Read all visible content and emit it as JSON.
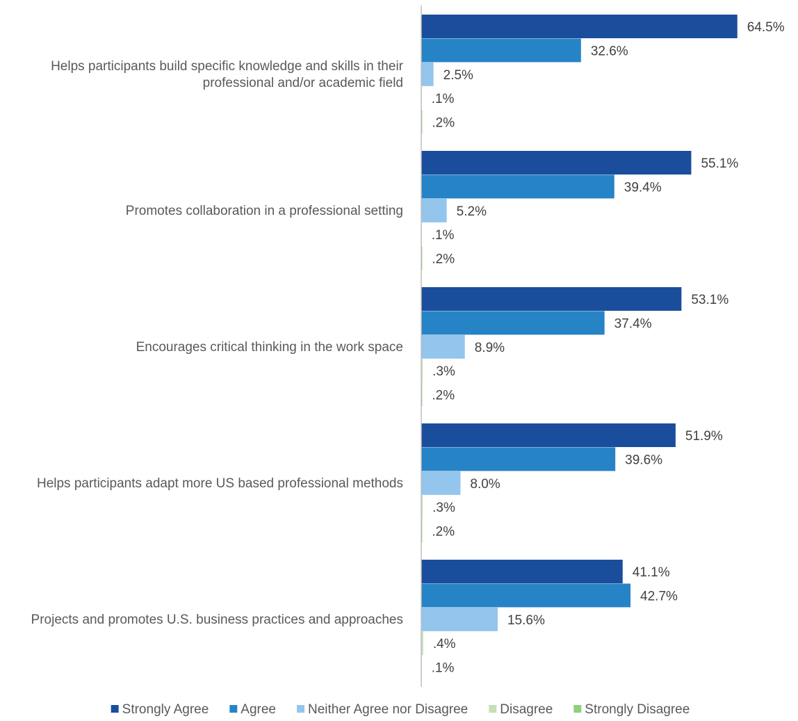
{
  "chart_data": {
    "type": "bar",
    "orientation": "horizontal",
    "categories": [
      "Helps participants build specific knowledge and skills in their professional and/or academic field",
      "Promotes collaboration in a professional setting",
      "Encourages critical thinking in the work space",
      "Helps participants adapt more US based professional methods",
      "Projects and promotes U.S. business practices and approaches"
    ],
    "series": [
      {
        "name": "Strongly Agree",
        "color": "#1a4e9c",
        "values": [
          64.5,
          55.1,
          53.1,
          51.9,
          41.1
        ],
        "labels": [
          "64.5%",
          "55.1%",
          "53.1%",
          "51.9%",
          "41.1%"
        ]
      },
      {
        "name": "Agree",
        "color": "#2683c6",
        "values": [
          32.6,
          39.4,
          37.4,
          39.6,
          42.7
        ],
        "labels": [
          "32.6%",
          "39.4%",
          "37.4%",
          "39.6%",
          "42.7%"
        ]
      },
      {
        "name": "Neither Agree nor Disagree",
        "color": "#94c5ec",
        "values": [
          2.5,
          5.2,
          8.9,
          8.0,
          15.6
        ],
        "labels": [
          "2.5%",
          "5.2%",
          "8.9%",
          "8.0%",
          "15.6%"
        ]
      },
      {
        "name": "Disagree",
        "color": "#c5e0b4",
        "values": [
          0.1,
          0.1,
          0.3,
          0.3,
          0.4
        ],
        "labels": [
          ".1%",
          ".1%",
          ".3%",
          ".3%",
          ".4%"
        ]
      },
      {
        "name": "Strongly Disagree",
        "color": "#8fcf7d",
        "values": [
          0.2,
          0.2,
          0.2,
          0.2,
          0.1
        ],
        "labels": [
          ".2%",
          ".2%",
          ".2%",
          ".2%",
          ".1%"
        ]
      }
    ],
    "title": "",
    "xlabel": "",
    "ylabel": "",
    "xlim": [
      0,
      70
    ],
    "grid": false,
    "legend_position": "bottom"
  }
}
